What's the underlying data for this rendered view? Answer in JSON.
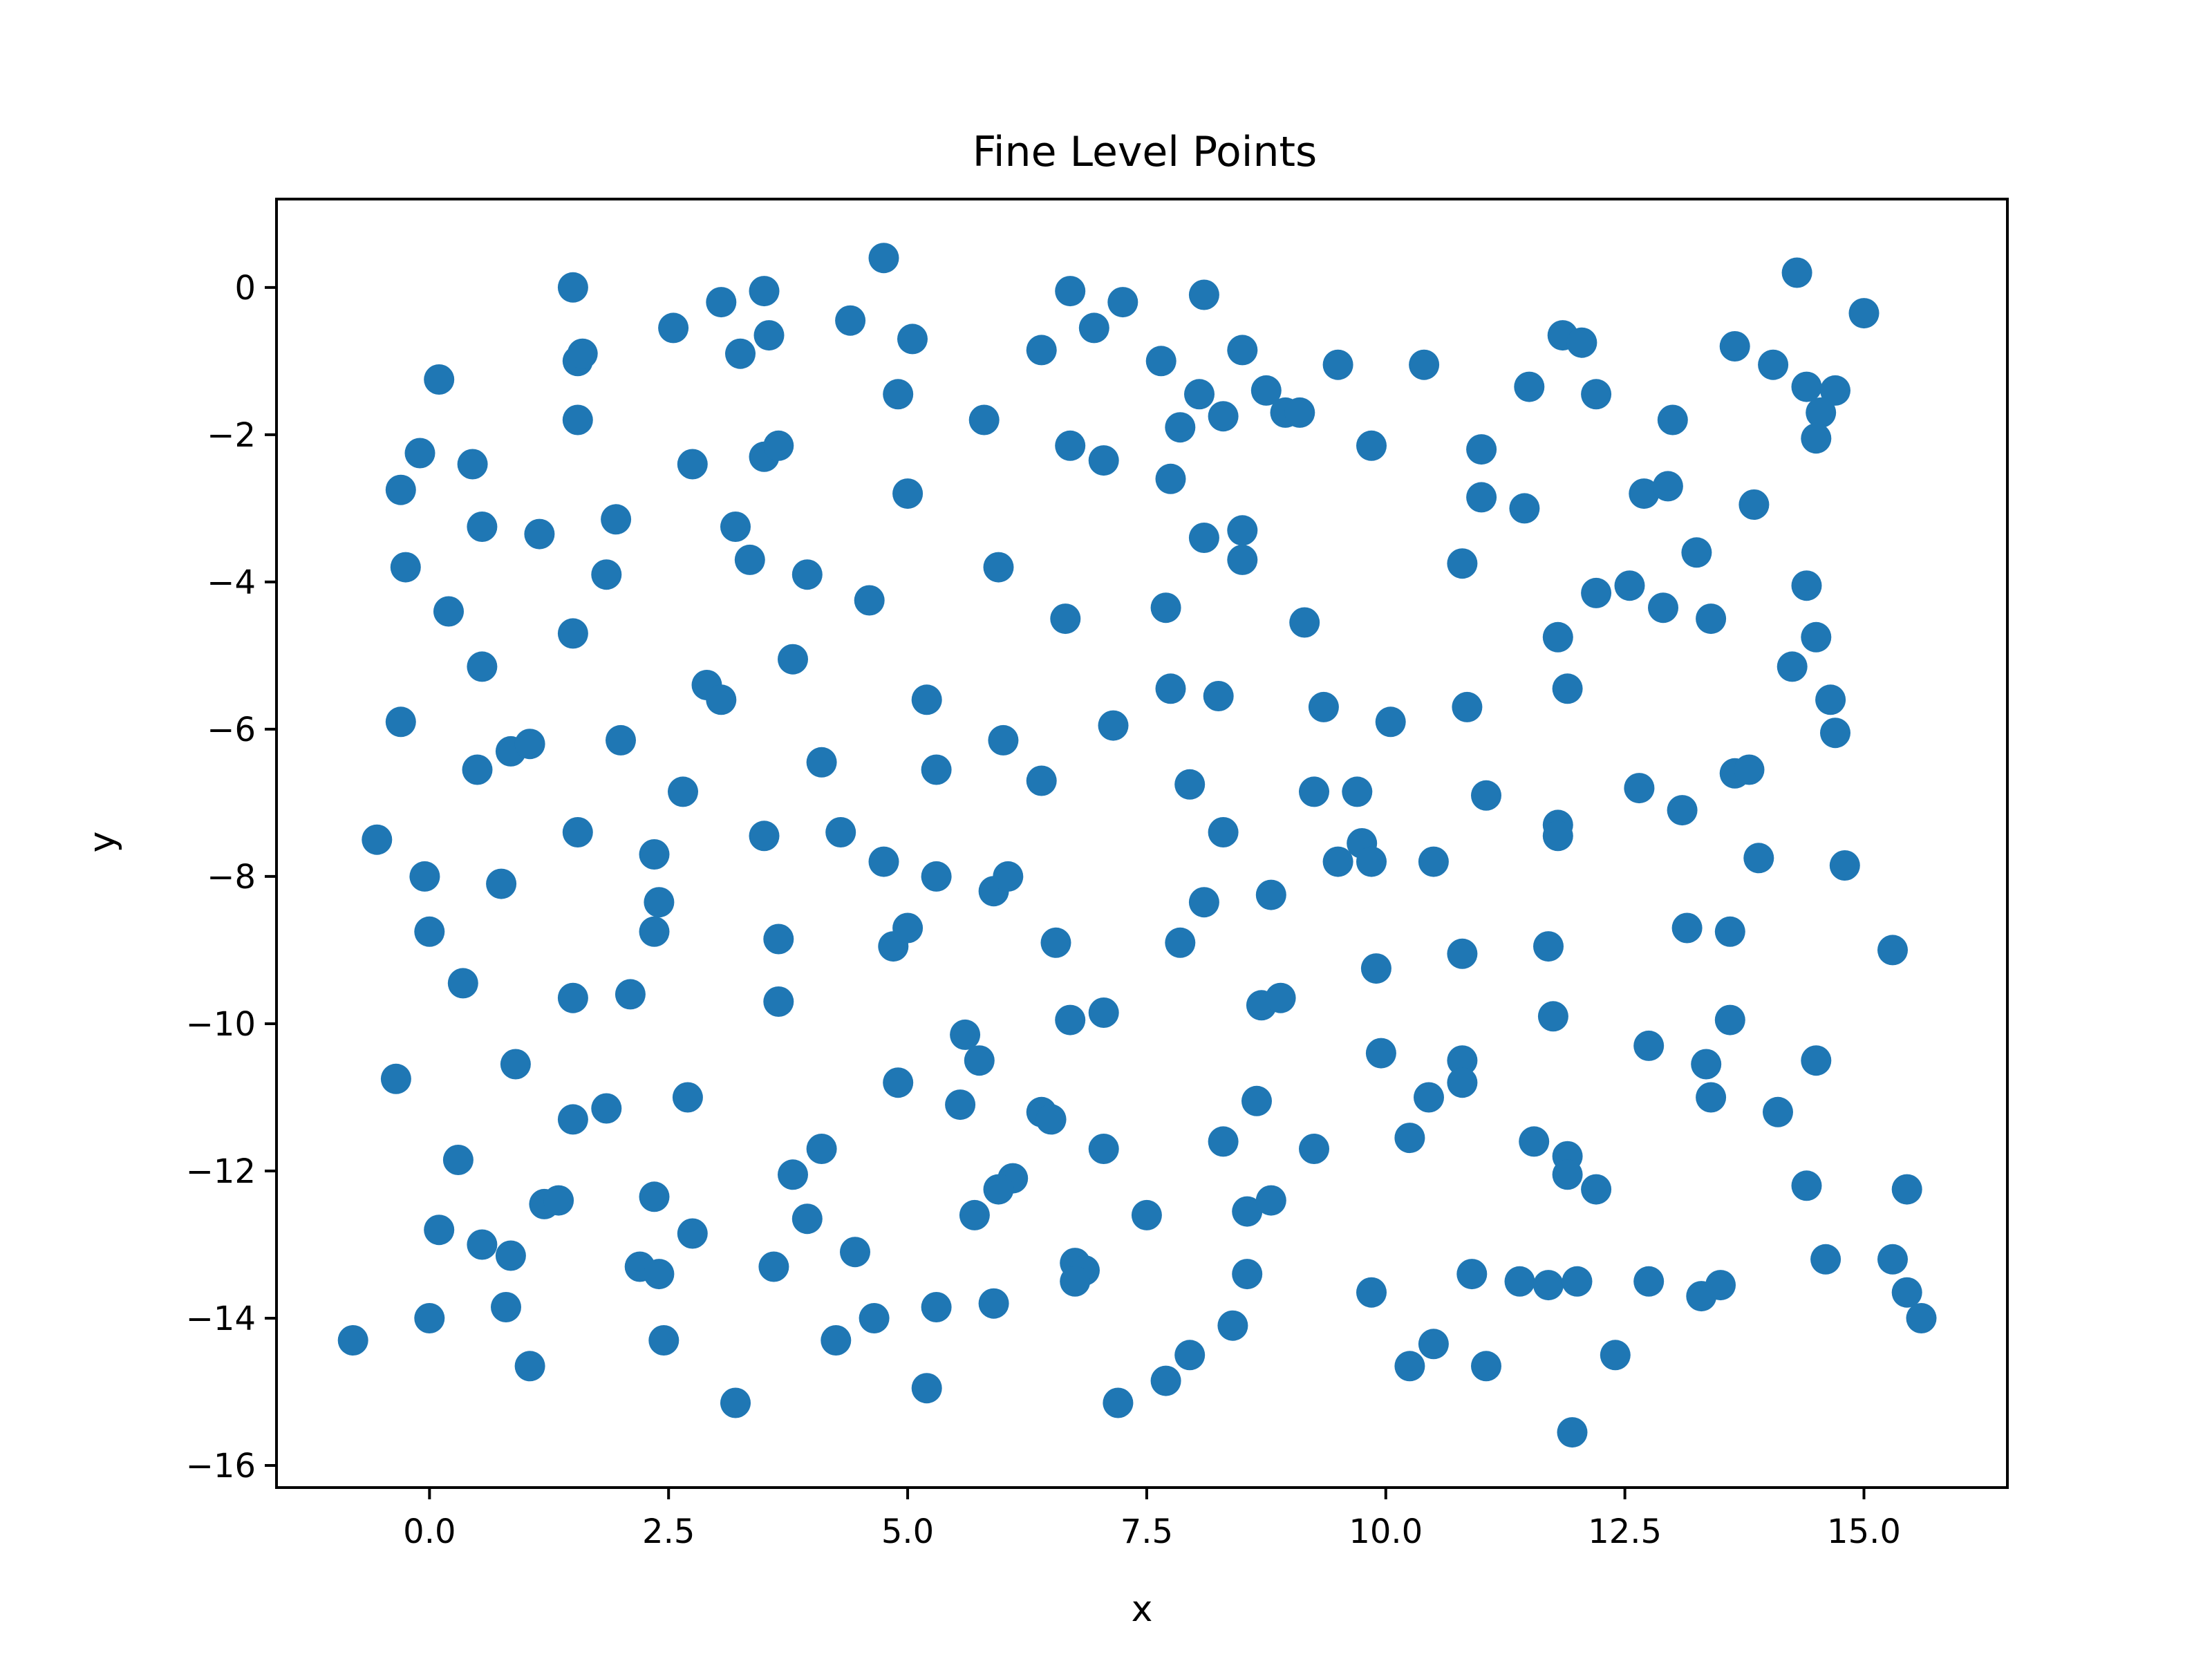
{
  "chart_data": {
    "type": "scatter",
    "title": "Fine Level Points",
    "xlabel": "x",
    "ylabel": "y",
    "xlim": [
      -1.6,
      16.5
    ],
    "ylim": [
      -16.3,
      1.2
    ],
    "xticks": [
      0.0,
      2.5,
      5.0,
      7.5,
      10.0,
      12.5,
      15.0
    ],
    "xtick_labels": [
      "0.0",
      "2.5",
      "5.0",
      "7.5",
      "10.0",
      "12.5",
      "15.0"
    ],
    "yticks": [
      0,
      -2,
      -4,
      -6,
      -8,
      -10,
      -12,
      -14,
      -16
    ],
    "ytick_labels": [
      "0",
      "−2",
      "−4",
      "−6",
      "−8",
      "−10",
      "−12",
      "−14",
      "−16"
    ],
    "grid": false,
    "legend": "none",
    "color": "#1f77b4",
    "points": [
      [
        1.5,
        0.0
      ],
      [
        4.75,
        0.4
      ],
      [
        6.7,
        -0.05
      ],
      [
        3.5,
        -0.05
      ],
      [
        3.05,
        -0.2
      ],
      [
        7.25,
        -0.2
      ],
      [
        8.1,
        -0.1
      ],
      [
        14.3,
        0.2
      ],
      [
        15.0,
        -0.35
      ],
      [
        2.55,
        -0.55
      ],
      [
        4.4,
        -0.45
      ],
      [
        5.05,
        -0.7
      ],
      [
        3.55,
        -0.65
      ],
      [
        3.25,
        -0.9
      ],
      [
        6.95,
        -0.55
      ],
      [
        6.4,
        -0.85
      ],
      [
        8.5,
        -0.85
      ],
      [
        11.85,
        -0.65
      ],
      [
        12.05,
        -0.75
      ],
      [
        13.65,
        -0.8
      ],
      [
        1.55,
        -1.0
      ],
      [
        1.6,
        -0.9
      ],
      [
        0.1,
        -1.25
      ],
      [
        7.65,
        -1.0
      ],
      [
        9.5,
        -1.05
      ],
      [
        10.4,
        -1.05
      ],
      [
        14.05,
        -1.05
      ],
      [
        4.9,
        -1.45
      ],
      [
        8.05,
        -1.45
      ],
      [
        8.75,
        -1.4
      ],
      [
        11.5,
        -1.35
      ],
      [
        12.2,
        -1.45
      ],
      [
        14.4,
        -1.35
      ],
      [
        14.7,
        -1.4
      ],
      [
        1.55,
        -1.8
      ],
      [
        5.8,
        -1.8
      ],
      [
        7.85,
        -1.9
      ],
      [
        8.3,
        -1.75
      ],
      [
        8.95,
        -1.7
      ],
      [
        9.1,
        -1.7
      ],
      [
        13.0,
        -1.8
      ],
      [
        14.55,
        -1.7
      ],
      [
        -0.1,
        -2.25
      ],
      [
        0.45,
        -2.4
      ],
      [
        2.75,
        -2.4
      ],
      [
        3.5,
        -2.3
      ],
      [
        3.65,
        -2.15
      ],
      [
        6.7,
        -2.15
      ],
      [
        7.05,
        -2.35
      ],
      [
        9.85,
        -2.15
      ],
      [
        11.0,
        -2.2
      ],
      [
        14.5,
        -2.05
      ],
      [
        -0.3,
        -2.75
      ],
      [
        7.75,
        -2.6
      ],
      [
        5.0,
        -2.8
      ],
      [
        11.0,
        -2.85
      ],
      [
        11.45,
        -3.0
      ],
      [
        12.7,
        -2.8
      ],
      [
        12.95,
        -2.7
      ],
      [
        13.85,
        -2.95
      ],
      [
        0.55,
        -3.25
      ],
      [
        1.15,
        -3.35
      ],
      [
        1.95,
        -3.15
      ],
      [
        3.2,
        -3.25
      ],
      [
        8.1,
        -3.4
      ],
      [
        8.5,
        -3.3
      ],
      [
        -0.25,
        -3.8
      ],
      [
        1.85,
        -3.9
      ],
      [
        3.35,
        -3.7
      ],
      [
        3.95,
        -3.9
      ],
      [
        5.95,
        -3.8
      ],
      [
        8.5,
        -3.7
      ],
      [
        10.8,
        -3.75
      ],
      [
        13.25,
        -3.6
      ],
      [
        0.2,
        -4.4
      ],
      [
        1.5,
        -4.7
      ],
      [
        4.6,
        -4.25
      ],
      [
        6.65,
        -4.5
      ],
      [
        7.7,
        -4.35
      ],
      [
        9.15,
        -4.55
      ],
      [
        11.8,
        -4.75
      ],
      [
        12.2,
        -4.15
      ],
      [
        12.55,
        -4.05
      ],
      [
        12.9,
        -4.35
      ],
      [
        13.4,
        -4.5
      ],
      [
        14.4,
        -4.05
      ],
      [
        14.5,
        -4.75
      ],
      [
        0.55,
        -5.15
      ],
      [
        3.8,
        -5.05
      ],
      [
        2.9,
        -5.4
      ],
      [
        3.05,
        -5.6
      ],
      [
        5.2,
        -5.6
      ],
      [
        7.75,
        -5.45
      ],
      [
        8.25,
        -5.55
      ],
      [
        9.35,
        -5.7
      ],
      [
        10.85,
        -5.7
      ],
      [
        11.9,
        -5.45
      ],
      [
        14.25,
        -5.15
      ],
      [
        14.65,
        -5.6
      ],
      [
        -0.3,
        -5.9
      ],
      [
        0.5,
        -6.55
      ],
      [
        0.85,
        -6.3
      ],
      [
        1.05,
        -6.2
      ],
      [
        2.0,
        -6.15
      ],
      [
        4.1,
        -6.45
      ],
      [
        5.3,
        -6.55
      ],
      [
        6.0,
        -6.15
      ],
      [
        7.15,
        -5.95
      ],
      [
        10.05,
        -5.9
      ],
      [
        14.7,
        -6.05
      ],
      [
        2.65,
        -6.85
      ],
      [
        6.4,
        -6.7
      ],
      [
        7.95,
        -6.75
      ],
      [
        9.25,
        -6.85
      ],
      [
        9.7,
        -6.85
      ],
      [
        11.05,
        -6.9
      ],
      [
        12.65,
        -6.8
      ],
      [
        13.1,
        -7.1
      ],
      [
        13.65,
        -6.6
      ],
      [
        13.8,
        -6.55
      ],
      [
        -0.55,
        -7.5
      ],
      [
        1.55,
        -7.4
      ],
      [
        2.35,
        -7.7
      ],
      [
        3.5,
        -7.45
      ],
      [
        4.3,
        -7.4
      ],
      [
        8.3,
        -7.4
      ],
      [
        9.75,
        -7.55
      ],
      [
        11.8,
        -7.3
      ],
      [
        11.8,
        -7.45
      ],
      [
        -0.05,
        -8.0
      ],
      [
        0.75,
        -8.1
      ],
      [
        4.75,
        -7.8
      ],
      [
        5.3,
        -8.0
      ],
      [
        5.9,
        -8.2
      ],
      [
        6.05,
        -8.0
      ],
      [
        8.8,
        -8.25
      ],
      [
        9.5,
        -7.8
      ],
      [
        9.85,
        -7.8
      ],
      [
        10.5,
        -7.8
      ],
      [
        13.9,
        -7.75
      ],
      [
        14.8,
        -7.85
      ],
      [
        0.0,
        -8.75
      ],
      [
        2.35,
        -8.75
      ],
      [
        2.4,
        -8.35
      ],
      [
        3.65,
        -8.85
      ],
      [
        4.85,
        -8.95
      ],
      [
        5.0,
        -8.7
      ],
      [
        6.55,
        -8.9
      ],
      [
        7.85,
        -8.9
      ],
      [
        8.1,
        -8.35
      ],
      [
        10.8,
        -9.05
      ],
      [
        11.7,
        -8.95
      ],
      [
        13.15,
        -8.7
      ],
      [
        13.6,
        -8.75
      ],
      [
        15.3,
        -9.0
      ],
      [
        0.35,
        -9.45
      ],
      [
        1.5,
        -9.65
      ],
      [
        2.1,
        -9.6
      ],
      [
        3.65,
        -9.7
      ],
      [
        8.7,
        -9.75
      ],
      [
        8.9,
        -9.65
      ],
      [
        9.9,
        -9.25
      ],
      [
        6.7,
        -9.95
      ],
      [
        7.05,
        -9.85
      ],
      [
        11.75,
        -9.9
      ],
      [
        13.6,
        -9.95
      ],
      [
        -0.35,
        -10.75
      ],
      [
        0.9,
        -10.55
      ],
      [
        5.6,
        -10.15
      ],
      [
        5.75,
        -10.5
      ],
      [
        9.95,
        -10.4
      ],
      [
        10.8,
        -10.5
      ],
      [
        12.75,
        -10.3
      ],
      [
        13.35,
        -10.55
      ],
      [
        14.5,
        -10.5
      ],
      [
        1.5,
        -11.3
      ],
      [
        1.85,
        -11.15
      ],
      [
        2.7,
        -11.0
      ],
      [
        4.9,
        -10.8
      ],
      [
        5.55,
        -11.1
      ],
      [
        6.4,
        -11.2
      ],
      [
        6.5,
        -11.3
      ],
      [
        8.65,
        -11.05
      ],
      [
        10.45,
        -11.0
      ],
      [
        10.8,
        -10.8
      ],
      [
        13.4,
        -11.0
      ],
      [
        14.1,
        -11.2
      ],
      [
        0.3,
        -11.85
      ],
      [
        1.2,
        -12.45
      ],
      [
        1.35,
        -12.4
      ],
      [
        2.35,
        -12.35
      ],
      [
        3.8,
        -12.05
      ],
      [
        4.1,
        -11.7
      ],
      [
        6.1,
        -12.1
      ],
      [
        5.95,
        -12.25
      ],
      [
        7.05,
        -11.7
      ],
      [
        8.3,
        -11.6
      ],
      [
        9.25,
        -11.7
      ],
      [
        10.25,
        -11.55
      ],
      [
        11.55,
        -11.6
      ],
      [
        11.9,
        -11.8
      ],
      [
        11.9,
        -12.05
      ],
      [
        12.2,
        -12.25
      ],
      [
        14.4,
        -12.2
      ],
      [
        15.45,
        -12.25
      ],
      [
        0.1,
        -12.8
      ],
      [
        0.55,
        -13.0
      ],
      [
        0.85,
        -13.15
      ],
      [
        2.2,
        -13.3
      ],
      [
        2.4,
        -13.4
      ],
      [
        2.75,
        -12.85
      ],
      [
        3.6,
        -13.3
      ],
      [
        3.95,
        -12.65
      ],
      [
        4.45,
        -13.1
      ],
      [
        5.7,
        -12.6
      ],
      [
        6.75,
        -13.25
      ],
      [
        6.85,
        -13.35
      ],
      [
        7.5,
        -12.6
      ],
      [
        8.55,
        -12.55
      ],
      [
        8.8,
        -12.4
      ],
      [
        9.85,
        -13.65
      ],
      [
        10.9,
        -13.4
      ],
      [
        11.4,
        -13.5
      ],
      [
        11.7,
        -13.55
      ],
      [
        12.0,
        -13.5
      ],
      [
        12.75,
        -13.5
      ],
      [
        13.3,
        -13.7
      ],
      [
        13.5,
        -13.55
      ],
      [
        14.6,
        -13.2
      ],
      [
        15.3,
        -13.2
      ],
      [
        -0.8,
        -14.3
      ],
      [
        0.0,
        -14.0
      ],
      [
        0.8,
        -13.85
      ],
      [
        1.05,
        -14.65
      ],
      [
        2.45,
        -14.3
      ],
      [
        3.2,
        -15.15
      ],
      [
        4.25,
        -14.3
      ],
      [
        4.65,
        -14.0
      ],
      [
        5.2,
        -14.95
      ],
      [
        5.3,
        -13.85
      ],
      [
        5.9,
        -13.8
      ],
      [
        6.75,
        -13.5
      ],
      [
        7.2,
        -15.15
      ],
      [
        7.7,
        -14.85
      ],
      [
        7.95,
        -14.5
      ],
      [
        8.4,
        -14.1
      ],
      [
        8.55,
        -13.4
      ],
      [
        10.25,
        -14.65
      ],
      [
        10.5,
        -14.35
      ],
      [
        11.05,
        -14.65
      ],
      [
        11.95,
        -15.55
      ],
      [
        12.4,
        -14.5
      ],
      [
        15.45,
        -13.65
      ],
      [
        15.6,
        -14.0
      ]
    ]
  }
}
